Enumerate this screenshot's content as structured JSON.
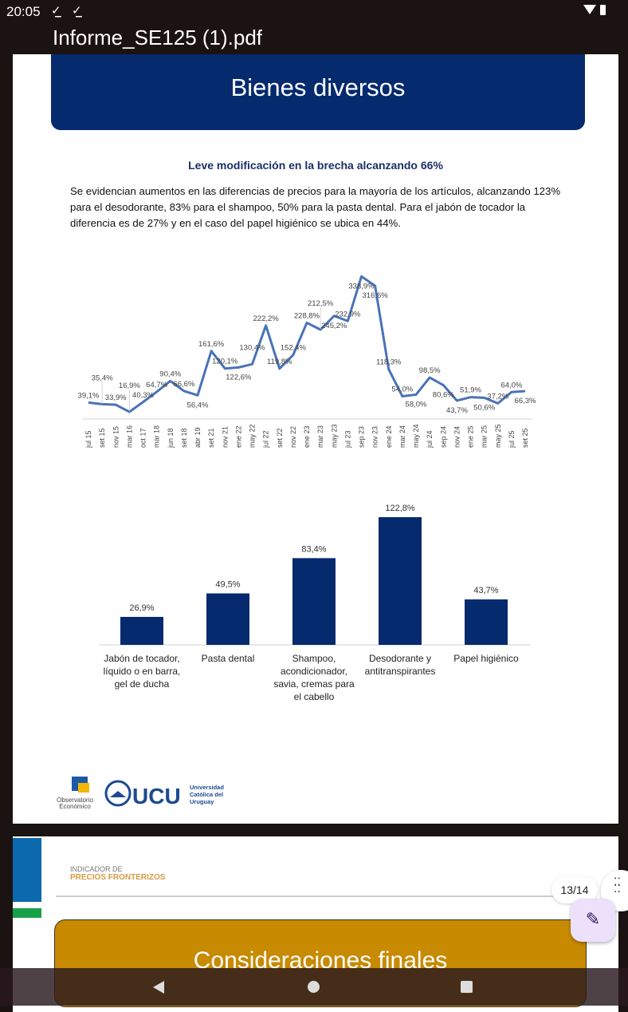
{
  "status_bar": {
    "time": "20:05",
    "download_icons": [
      "download-done-icon",
      "download-done-icon"
    ]
  },
  "toolbar": {
    "document_title": "Informe_SE125 (1).pdf"
  },
  "page": {
    "banner": "Bienes diversos",
    "subtitle": "Leve modificación en la brecha alcanzando 66%",
    "paragraph": "Se evidencian aumentos en las diferencias de precios para la mayoría de los artículos, alcanzando 123% para el desodorante, 83% para el shampoo, 50% para la pasta dental. Para el jabón de tocador la diferencia es de 27% y en el caso del papel higiénico se ubica en 44%.",
    "logos": {
      "observatorio": "Observatorio Económico",
      "ucu": "UCU",
      "ucu_name": "Universidad Católica del Uruguay"
    }
  },
  "chart_data": [
    {
      "type": "line",
      "color": "#4a72b8",
      "x": [
        "jul 15",
        "set 15",
        "nov 15",
        "mar 16",
        "oct 17",
        "mar 18",
        "jun 18",
        "set 18",
        "abr 19",
        "set 21",
        "nov 21",
        "ene 22",
        "may 22",
        "jul 22",
        "set 22",
        "nov 22",
        "ene 23",
        "mar 23",
        "may 23",
        "jul 23",
        "sep 23",
        "nov 23",
        "ene 24",
        "mar 24",
        "may 24",
        "jul 24",
        "sep 24",
        "nov 24",
        "ene 25",
        "mar 25",
        "may 25",
        "jul 25",
        "set 25"
      ],
      "values": [
        39.1,
        35.4,
        33.9,
        16.9,
        40.3,
        64.7,
        90.4,
        66.6,
        56.4,
        161.6,
        120.1,
        122.6,
        130.4,
        222.2,
        119.8,
        152.4,
        228.8,
        212.5,
        245.2,
        232.9,
        338.9,
        316.6,
        118.3,
        54.0,
        58.0,
        98.5,
        80.6,
        43.7,
        51.9,
        50.6,
        37.2,
        64.0,
        66.3
      ],
      "labels": [
        "39,1%",
        "35,4%",
        "33,9%",
        "16,9%",
        "40,3%",
        "64,7%",
        "90,4%",
        "66,6%",
        "56,4%",
        "161,6%",
        "120,1%",
        "122,6%",
        "130,4%",
        "222,2%",
        "119,8%",
        "152,4%",
        "228,8%",
        "212,5%",
        "245,2%",
        "232,9%",
        "338,9%",
        "316,6%",
        "118,3%",
        "54,0%",
        "58,0%",
        "98,5%",
        "80,6%",
        "43,7%",
        "51,9%",
        "50,6%",
        "37,2%",
        "64,0%",
        "66,3%"
      ],
      "grid": false
    },
    {
      "type": "bar",
      "color": "#062a6e",
      "categories": [
        "Jabón de tocador, líquido o en barra, gel de ducha",
        "Pasta dental",
        "Shampoo, acondicionador, savia, cremas para el cabello",
        "Desodorante y antitranspirantes",
        "Papel higiénico"
      ],
      "values": [
        26.9,
        49.5,
        83.4,
        122.8,
        43.7
      ],
      "labels": [
        "26,9%",
        "49,5%",
        "83,4%",
        "122,8%",
        "43,7%"
      ],
      "grid": false
    }
  ],
  "next_page": {
    "indicator_line1": "INDICADOR DE",
    "indicator_line2": "PRECIOS FRONTERIZOS",
    "banner": "Consideraciones finales"
  },
  "viewer": {
    "page_indicator": "13/14",
    "edit_icon": "annotate-pen-icon"
  }
}
